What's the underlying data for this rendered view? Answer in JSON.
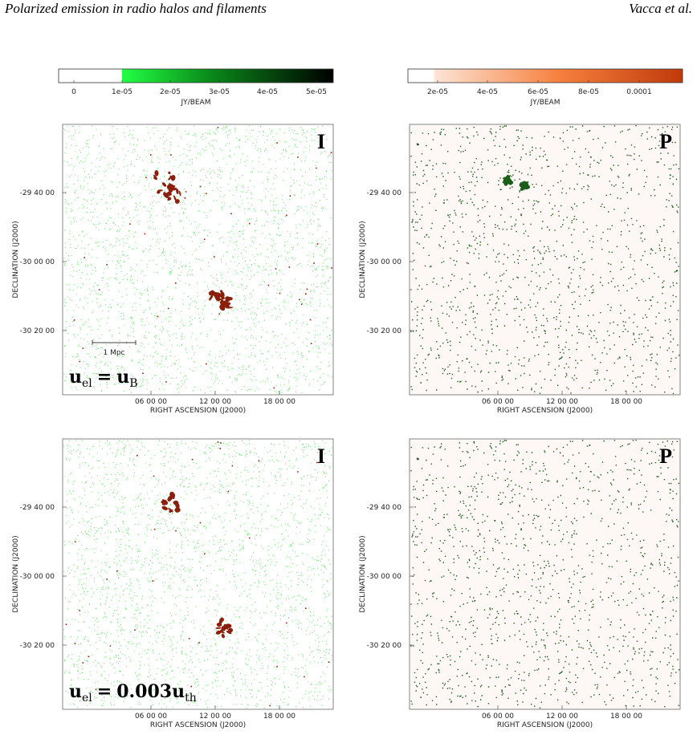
{
  "header": {
    "title": "Polarized emission in radio halos and filaments",
    "authors": "Vacca et al."
  },
  "colorbars": [
    {
      "ticks": [
        "0",
        "1e-05",
        "2e-05",
        "3e-05",
        "4e-05",
        "5e-05"
      ],
      "unit": "JY/BEAM"
    },
    {
      "ticks": [
        "2e-05",
        "4e-05",
        "6e-05",
        "8e-05",
        "0.0001"
      ],
      "unit": "JY/BEAM"
    }
  ],
  "panels": [
    {
      "label": "I",
      "y_axis": {
        "label": "DECLINATION (J2000)",
        "ticks": [
          "-29 40 00",
          "-30 00 00",
          "-30 20 00"
        ]
      },
      "x_axis": {
        "label": "RIGHT ASCENSION (J2000)",
        "ticks": [
          "06 00 00",
          "12 00 00",
          "18 00 00"
        ]
      },
      "scale_bar": "1 Mpc",
      "annotation": {
        "lhs": "u",
        "lhs_sub": "el",
        "relation": "=",
        "rhs": "u",
        "rhs_sub": "B"
      }
    },
    {
      "label": "P",
      "y_axis": {
        "label": "DECLINATION (J2000)",
        "ticks": [
          "-29 40 00",
          "-30 00 00",
          "-30 20 00"
        ]
      },
      "x_axis": {
        "label": "RIGHT ASCENSION (J2000)",
        "ticks": [
          "06 00 00",
          "12 00 00",
          "18 00 00"
        ]
      }
    },
    {
      "label": "I",
      "y_axis": {
        "label": "DECLINATION (J2000)",
        "ticks": [
          "-29 40 00",
          "-30 00 00",
          "-30 20 00"
        ]
      },
      "x_axis": {
        "label": "RIGHT ASCENSION (J2000)",
        "ticks": [
          "06 00 00",
          "12 00 00",
          "18 00 00"
        ]
      },
      "annotation": {
        "lhs": "u",
        "lhs_sub": "el",
        "relation": "=",
        "rhs": "0.003u",
        "rhs_sub": "th"
      }
    },
    {
      "label": "P",
      "y_axis": {
        "label": "DECLINATION (J2000)",
        "ticks": [
          "-29 40 00",
          "-30 00 00",
          "-30 20 00"
        ]
      },
      "x_axis": {
        "label": "RIGHT ASCENSION (J2000)",
        "ticks": [
          "06 00 00",
          "12 00 00",
          "18 00 00"
        ]
      }
    }
  ]
}
